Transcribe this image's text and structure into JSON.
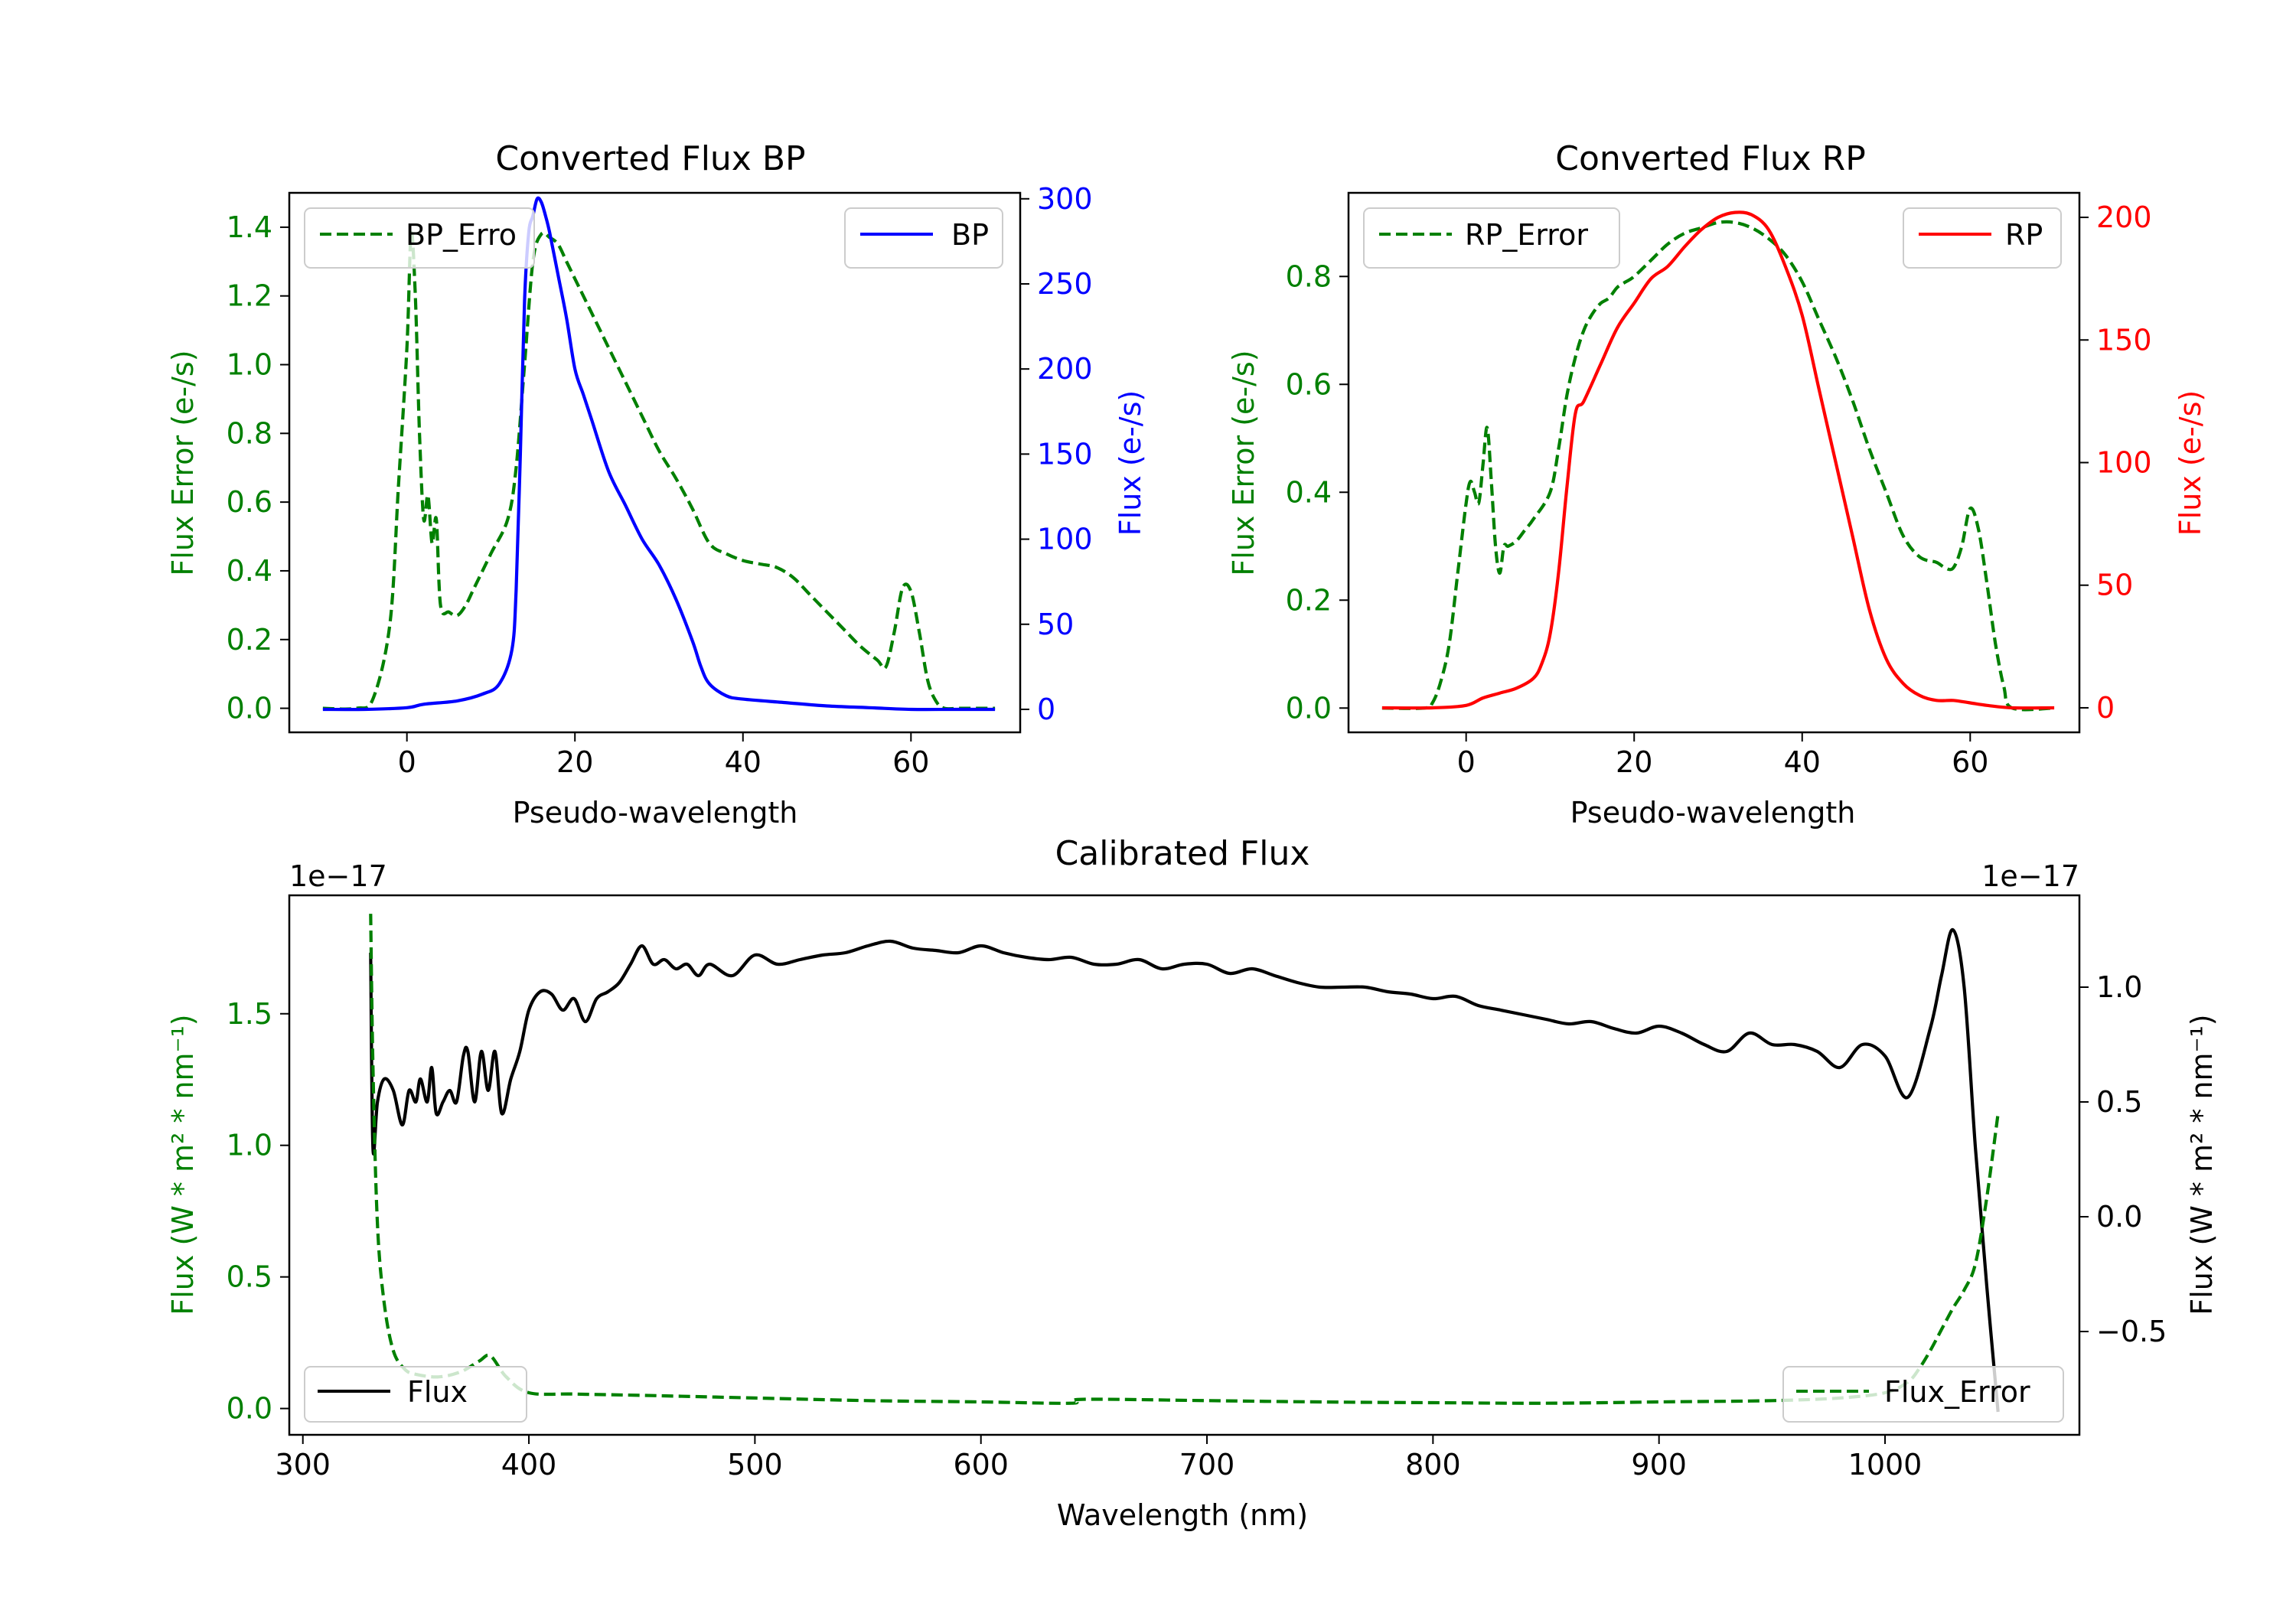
{
  "colors": {
    "bp": "#0000ff",
    "rp": "#ff0000",
    "error": "#008000",
    "flux": "#000000",
    "axis": "#000000"
  },
  "chart_data": [
    {
      "id": "bp",
      "type": "line",
      "title": "Converted Flux BP",
      "xlabel": "Pseudo-wavelength",
      "ylabel_left": "Flux Error (e-/s)",
      "ylabel_right": "Flux (e-/s)",
      "xlim": [
        -14,
        73
      ],
      "ylim_left": [
        -0.07,
        1.5
      ],
      "ylim_right": [
        -13.5,
        303.5
      ],
      "xticks": [
        0,
        20,
        40,
        60
      ],
      "xtick_labels": [
        "0",
        "20",
        "40",
        "60"
      ],
      "yticks_left": [
        0.0,
        0.2,
        0.4,
        0.6,
        0.8,
        1.0,
        1.2,
        1.4
      ],
      "ytick_labels_left": [
        "0.0",
        "0.2",
        "0.4",
        "0.6",
        "0.8",
        "1.0",
        "1.2",
        "1.4"
      ],
      "yticks_right": [
        0,
        50,
        100,
        150,
        200,
        250,
        300
      ],
      "ytick_labels_right": [
        "0",
        "50",
        "100",
        "150",
        "200",
        "250",
        "300"
      ],
      "legend_left": {
        "label": "BP_Error",
        "display": "BP_Erro",
        "placement": "upper-left"
      },
      "legend_right": {
        "label": "BP",
        "placement": "upper-right"
      },
      "series": [
        {
          "name": "BP_Error",
          "axis": "left",
          "style": "dashed",
          "x": [
            -10,
            -6,
            -4,
            -2,
            -1,
            0,
            0.5,
            1,
            1.5,
            2,
            2.5,
            3,
            3.5,
            4,
            5,
            6,
            7,
            8,
            10,
            12,
            13,
            14,
            15,
            16,
            17,
            18,
            19,
            20,
            22,
            24,
            26,
            28,
            30,
            32,
            34,
            36,
            38,
            40,
            42,
            44,
            46,
            48,
            50,
            52,
            54,
            56,
            57,
            58,
            59,
            60,
            61,
            62,
            63,
            64,
            66,
            70
          ],
          "values": [
            0.0,
            0.0,
            0.03,
            0.25,
            0.65,
            1.05,
            1.38,
            1.2,
            0.8,
            0.55,
            0.62,
            0.48,
            0.55,
            0.3,
            0.28,
            0.27,
            0.3,
            0.35,
            0.45,
            0.55,
            0.7,
            1.0,
            1.3,
            1.38,
            1.37,
            1.35,
            1.3,
            1.25,
            1.15,
            1.05,
            0.95,
            0.85,
            0.75,
            0.67,
            0.58,
            0.48,
            0.45,
            0.43,
            0.42,
            0.41,
            0.38,
            0.33,
            0.28,
            0.23,
            0.18,
            0.14,
            0.12,
            0.22,
            0.35,
            0.34,
            0.22,
            0.08,
            0.02,
            0.0,
            0.0,
            0.0
          ]
        },
        {
          "name": "BP",
          "axis": "right",
          "style": "solid",
          "x": [
            -10,
            -5,
            0,
            2,
            6,
            9,
            11,
            12.5,
            13,
            13.5,
            14,
            14.5,
            15,
            15.5,
            16,
            16.5,
            17,
            18,
            19,
            20,
            21,
            22,
            24,
            26,
            28,
            30,
            32,
            34,
            35,
            36,
            38,
            40,
            45,
            50,
            55,
            60,
            65,
            70
          ],
          "values": [
            0,
            0,
            1,
            3,
            5,
            9,
            15,
            35,
            70,
            150,
            240,
            280,
            290,
            300,
            298,
            290,
            280,
            255,
            230,
            200,
            185,
            170,
            140,
            120,
            100,
            85,
            65,
            40,
            25,
            15,
            8,
            6,
            4,
            2,
            1,
            0,
            0,
            0
          ]
        }
      ]
    },
    {
      "id": "rp",
      "type": "line",
      "title": "Converted Flux RP",
      "xlabel": "Pseudo-wavelength",
      "ylabel_left": "Flux Error (e-/s)",
      "ylabel_right": "Flux (e-/s)",
      "xlim": [
        -14,
        73
      ],
      "ylim_left": [
        -0.045,
        0.955
      ],
      "ylim_right": [
        -10,
        210
      ],
      "xticks": [
        0,
        20,
        40,
        60
      ],
      "xtick_labels": [
        "0",
        "20",
        "40",
        "60"
      ],
      "yticks_left": [
        0.0,
        0.2,
        0.4,
        0.6,
        0.8
      ],
      "ytick_labels_left": [
        "0.0",
        "0.2",
        "0.4",
        "0.6",
        "0.8"
      ],
      "yticks_right": [
        0,
        50,
        100,
        150,
        200
      ],
      "ytick_labels_right": [
        "0",
        "50",
        "100",
        "150",
        "200"
      ],
      "legend_left": {
        "label": "RP_Error",
        "display": "RP_Error",
        "placement": "upper-left"
      },
      "legend_right": {
        "label": "RP",
        "placement": "upper-right"
      },
      "series": [
        {
          "name": "RP_Error",
          "axis": "left",
          "style": "dashed",
          "x": [
            -10,
            -5,
            -4,
            -3,
            -2,
            -1,
            0,
            0.5,
            1,
            1.5,
            2,
            2.5,
            3,
            3.5,
            4,
            4.5,
            5,
            6,
            7,
            8,
            10,
            11,
            12,
            13,
            14,
            15,
            16,
            17,
            18,
            19,
            20,
            22,
            24,
            26,
            28,
            30,
            32,
            34,
            36,
            38,
            40,
            42,
            44,
            46,
            48,
            50,
            52,
            54,
            56,
            57,
            58,
            59,
            60,
            61,
            62,
            63,
            64,
            65,
            70
          ],
          "values": [
            0.0,
            0.0,
            0.01,
            0.05,
            0.12,
            0.25,
            0.38,
            0.42,
            0.4,
            0.38,
            0.45,
            0.52,
            0.42,
            0.3,
            0.25,
            0.3,
            0.3,
            0.31,
            0.33,
            0.35,
            0.4,
            0.48,
            0.58,
            0.65,
            0.7,
            0.73,
            0.75,
            0.76,
            0.78,
            0.79,
            0.8,
            0.83,
            0.86,
            0.88,
            0.89,
            0.9,
            0.9,
            0.89,
            0.87,
            0.84,
            0.79,
            0.72,
            0.65,
            0.57,
            0.48,
            0.4,
            0.32,
            0.28,
            0.27,
            0.26,
            0.26,
            0.3,
            0.37,
            0.33,
            0.23,
            0.12,
            0.04,
            0.0,
            0.0
          ]
        },
        {
          "name": "RP",
          "axis": "right",
          "style": "solid",
          "x": [
            -10,
            -4,
            0,
            2,
            4,
            6,
            8,
            9,
            10,
            11,
            12,
            13,
            14,
            16,
            18,
            20,
            22,
            24,
            26,
            28,
            30,
            32,
            34,
            36,
            38,
            40,
            42,
            44,
            46,
            48,
            50,
            52,
            54,
            56,
            58,
            60,
            62,
            65,
            70
          ],
          "values": [
            0,
            0,
            1,
            4,
            6,
            8,
            12,
            18,
            30,
            55,
            90,
            120,
            125,
            140,
            155,
            165,
            175,
            180,
            188,
            195,
            200,
            202,
            201,
            195,
            180,
            160,
            130,
            100,
            70,
            40,
            20,
            10,
            5,
            3,
            3,
            2,
            1,
            0,
            0
          ]
        }
      ]
    },
    {
      "id": "calibrated",
      "type": "line",
      "title": "Calibrated Flux",
      "xlabel": "Wavelength (nm)",
      "ylabel_left": "Flux (W * m² * nm⁻¹)",
      "ylabel_right": "Flux (W * m² * nm⁻¹)",
      "offset_left": "1e−17",
      "offset_right": "1e−17",
      "xlim": [
        294,
        1086
      ],
      "ylim_left": [
        -0.1,
        1.95
      ],
      "ylim_right": [
        -0.95,
        1.4
      ],
      "xticks": [
        300,
        400,
        500,
        600,
        700,
        800,
        900,
        1000
      ],
      "xtick_labels": [
        "300",
        "400",
        "500",
        "600",
        "700",
        "800",
        "900",
        "1000"
      ],
      "yticks_left": [
        0.0,
        0.5,
        1.0,
        1.5
      ],
      "ytick_labels_left": [
        "0.0",
        "0.5",
        "1.0",
        "1.5"
      ],
      "yticks_right": [
        -0.5,
        0.0,
        0.5,
        1.0
      ],
      "ytick_labels_right": [
        "−0.5",
        "0.0",
        "0.5",
        "1.0"
      ],
      "legend_left": {
        "label": "Flux",
        "placement": "lower-left"
      },
      "legend_right": {
        "label": "Flux_Error",
        "placement": "lower-right"
      },
      "series": [
        {
          "name": "Flux",
          "axis": "right",
          "style": "solid",
          "x": [
            330,
            331,
            333,
            336,
            340,
            344,
            347,
            350,
            352,
            355,
            357,
            359,
            362,
            365,
            368,
            371,
            373,
            376,
            379,
            382,
            385,
            388,
            392,
            396,
            400,
            405,
            410,
            415,
            420,
            425,
            430,
            435,
            440,
            445,
            450,
            455,
            460,
            465,
            470,
            475,
            480,
            490,
            500,
            510,
            520,
            530,
            540,
            550,
            560,
            570,
            580,
            590,
            600,
            610,
            620,
            630,
            640,
            650,
            660,
            670,
            680,
            690,
            700,
            710,
            720,
            730,
            740,
            750,
            760,
            770,
            780,
            790,
            800,
            810,
            820,
            830,
            840,
            850,
            860,
            870,
            880,
            890,
            900,
            910,
            920,
            930,
            940,
            950,
            960,
            970,
            980,
            990,
            1000,
            1010,
            1020,
            1025,
            1030,
            1035,
            1040,
            1045,
            1050
          ],
          "values": [
            1.15,
            0.3,
            0.5,
            0.6,
            0.55,
            0.4,
            0.55,
            0.5,
            0.6,
            0.5,
            0.65,
            0.45,
            0.5,
            0.55,
            0.5,
            0.7,
            0.72,
            0.5,
            0.72,
            0.55,
            0.72,
            0.45,
            0.6,
            0.72,
            0.9,
            0.98,
            0.97,
            0.9,
            0.95,
            0.85,
            0.95,
            0.98,
            1.02,
            1.1,
            1.18,
            1.1,
            1.12,
            1.08,
            1.1,
            1.05,
            1.1,
            1.05,
            1.14,
            1.1,
            1.12,
            1.14,
            1.15,
            1.18,
            1.2,
            1.17,
            1.16,
            1.15,
            1.18,
            1.15,
            1.13,
            1.12,
            1.13,
            1.1,
            1.1,
            1.12,
            1.08,
            1.1,
            1.1,
            1.06,
            1.08,
            1.05,
            1.02,
            1.0,
            1.0,
            1.0,
            0.98,
            0.97,
            0.95,
            0.96,
            0.92,
            0.9,
            0.88,
            0.86,
            0.84,
            0.85,
            0.82,
            0.8,
            0.83,
            0.8,
            0.75,
            0.72,
            0.8,
            0.75,
            0.75,
            0.72,
            0.65,
            0.75,
            0.7,
            0.52,
            0.82,
            1.05,
            1.25,
            1.0,
            0.3,
            -0.3,
            -0.85
          ]
        },
        {
          "name": "Flux_Error",
          "axis": "left",
          "style": "dashed",
          "x": [
            330,
            331,
            333,
            336,
            340,
            345,
            350,
            360,
            370,
            378,
            383,
            390,
            400,
            420,
            450,
            500,
            550,
            600,
            640,
            645,
            700,
            750,
            800,
            850,
            900,
            950,
            980,
            1000,
            1010,
            1015,
            1020,
            1025,
            1030,
            1035,
            1040,
            1045,
            1050
          ],
          "values": [
            1.88,
            1.3,
            0.7,
            0.4,
            0.22,
            0.15,
            0.13,
            0.12,
            0.14,
            0.18,
            0.2,
            0.12,
            0.06,
            0.055,
            0.05,
            0.04,
            0.03,
            0.025,
            0.02,
            0.035,
            0.03,
            0.025,
            0.022,
            0.02,
            0.025,
            0.03,
            0.04,
            0.06,
            0.1,
            0.15,
            0.22,
            0.3,
            0.38,
            0.45,
            0.55,
            0.8,
            1.12
          ]
        }
      ]
    }
  ]
}
